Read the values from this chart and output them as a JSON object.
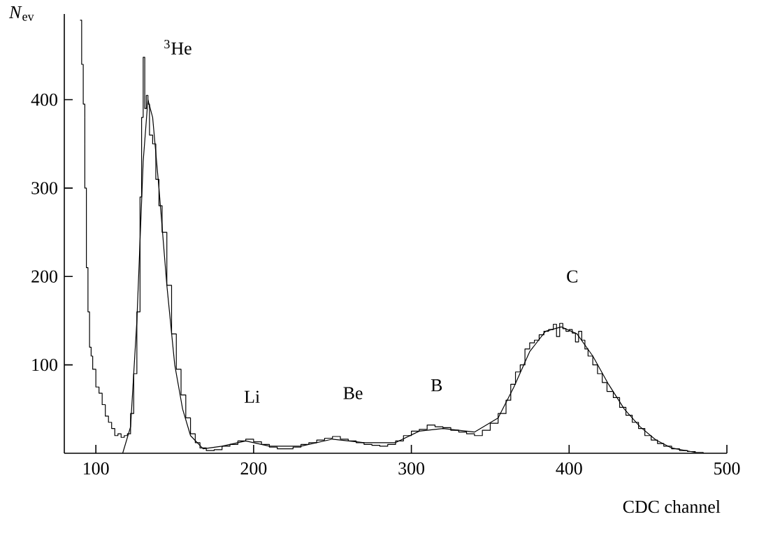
{
  "chart_data": {
    "type": "line",
    "xlabel": "CDC channel",
    "ylabel": "*N*$_{ev}$",
    "xlim": [
      80,
      500
    ],
    "ylim": [
      0,
      497
    ],
    "xticks": [
      100,
      200,
      300,
      400,
      500
    ],
    "yticks": [
      100,
      200,
      300,
      400
    ],
    "series": [
      {
        "type": "step",
        "color": "#000000",
        "x": [
          90,
          91,
          92,
          93,
          94,
          95,
          96,
          97,
          98,
          100,
          102,
          104,
          106,
          108,
          110,
          112,
          114,
          116,
          118,
          120,
          122,
          124,
          126,
          128,
          129,
          130,
          131,
          132,
          133,
          134,
          136,
          138,
          140,
          142,
          145,
          148,
          151,
          154,
          157,
          160,
          163,
          166,
          170,
          175,
          180,
          185,
          190,
          195,
          200,
          205,
          210,
          215,
          220,
          225,
          230,
          235,
          240,
          245,
          250,
          255,
          260,
          265,
          270,
          275,
          280,
          285,
          290,
          295,
          300,
          305,
          310,
          315,
          320,
          325,
          330,
          335,
          340,
          345,
          350,
          355,
          360,
          363,
          366,
          369,
          372,
          375,
          378,
          381,
          384,
          387,
          390,
          392,
          394,
          396,
          398,
          400,
          402,
          404,
          406,
          408,
          410,
          412,
          415,
          418,
          421,
          424,
          428,
          432,
          436,
          440,
          444,
          448,
          452,
          456,
          460,
          465,
          470,
          475,
          480,
          485
        ],
        "values": [
          490,
          440,
          395,
          300,
          210,
          160,
          120,
          110,
          95,
          75,
          68,
          55,
          42,
          35,
          28,
          20,
          22,
          18,
          20,
          22,
          45,
          90,
          160,
          290,
          380,
          448,
          390,
          405,
          395,
          360,
          350,
          310,
          280,
          250,
          190,
          135,
          95,
          66,
          40,
          22,
          12,
          6,
          3,
          4,
          8,
          10,
          14,
          16,
          13,
          10,
          7,
          5,
          5,
          7,
          10,
          12,
          15,
          17,
          19,
          16,
          14,
          12,
          10,
          9,
          8,
          10,
          14,
          20,
          25,
          27,
          32,
          30,
          29,
          26,
          24,
          22,
          20,
          26,
          34,
          45,
          60,
          78,
          92,
          100,
          118,
          125,
          128,
          134,
          138,
          140,
          146,
          132,
          147,
          141,
          138,
          140,
          136,
          126,
          138,
          128,
          118,
          110,
          100,
          90,
          80,
          70,
          63,
          52,
          43,
          35,
          28,
          20,
          15,
          11,
          8,
          5,
          3,
          2,
          1,
          0
        ]
      },
      {
        "color": "#000000",
        "x": [
          117,
          122,
          126,
          130,
          133,
          136,
          140,
          145,
          150,
          155,
          160,
          168,
          180,
          195,
          210,
          230,
          250,
          270,
          290,
          305,
          320,
          340,
          355,
          365,
          375,
          385,
          395,
          405,
          415,
          425,
          435,
          445,
          455,
          465,
          480
        ],
        "values": [
          0,
          30,
          150,
          330,
          400,
          380,
          300,
          190,
          100,
          50,
          20,
          5,
          8,
          14,
          8,
          8,
          16,
          12,
          12,
          25,
          28,
          24,
          40,
          75,
          115,
          138,
          143,
          135,
          110,
          78,
          50,
          30,
          15,
          6,
          1
        ]
      }
    ],
    "annotations": [
      "$^{3}$He",
      "Li",
      "Be",
      "B",
      "C"
    ]
  }
}
